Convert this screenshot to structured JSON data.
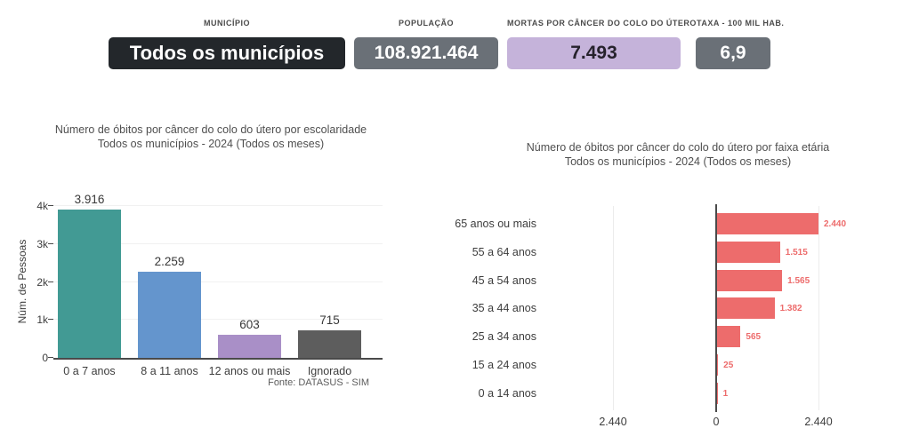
{
  "header": {
    "stats": [
      {
        "label": "MUNICÍPIO",
        "value": "Todos os municípios",
        "bg": "#23272b",
        "fg": "#ffffff"
      },
      {
        "label": "POPULAÇÃO",
        "value": "108.921.464",
        "bg": "#6a7077",
        "fg": "#ffffff"
      },
      {
        "label": "MORTAS POR CÂNCER DO COLO DO ÚTERO",
        "value": "7.493",
        "bg": "#c5b3da",
        "fg": "#26222c"
      },
      {
        "label": "TAXA - 100 MIL HAB.",
        "value": "6,9",
        "bg": "#6a7077",
        "fg": "#ffffff"
      }
    ]
  },
  "chart_data": [
    {
      "type": "bar",
      "title": "Número de óbitos por câncer do colo do útero por escolaridade",
      "subtitle": "Todos os municípios - 2024 (Todos os meses)",
      "categories": [
        "0 a 7 anos",
        "8 a 11 anos",
        "12 anos ou mais",
        "Ignorado"
      ],
      "values": [
        3916,
        2259,
        603,
        715
      ],
      "value_labels": [
        "3.916",
        "2.259",
        "603",
        "715"
      ],
      "bar_colors": [
        "#429a94",
        "#6495cd",
        "#a98fc7",
        "#5d5d5d"
      ],
      "xlabel": "",
      "ylabel": "Núm. de Pessoas",
      "ylim": [
        0,
        4000
      ],
      "yticks": [
        "4k",
        "3k",
        "2k",
        "1k",
        "0"
      ],
      "grid": true,
      "source": "Fonte: DATASUS - SIM"
    },
    {
      "type": "bar",
      "orientation": "horizontal",
      "title": "Número de óbitos por câncer do colo do útero por faixa etária",
      "subtitle": "Todos os municípios - 2024 (Todos os meses)",
      "categories": [
        "65 anos ou mais",
        "55 a 64 anos",
        "45 a 54 anos",
        "35 a 44 anos",
        "25 a 34 anos",
        "15 a 24 anos",
        "0 a 14 anos"
      ],
      "values": [
        2440,
        1515,
        1565,
        1382,
        565,
        25,
        1
      ],
      "value_labels": [
        "2.440",
        "1.515",
        "1.565",
        "1.382",
        "565",
        "25",
        "1"
      ],
      "bar_color": "#ed6c6c",
      "xlim": [
        -2440,
        2440
      ],
      "xticks": [
        "2.440",
        "0",
        "2.440"
      ],
      "grid": true
    }
  ]
}
